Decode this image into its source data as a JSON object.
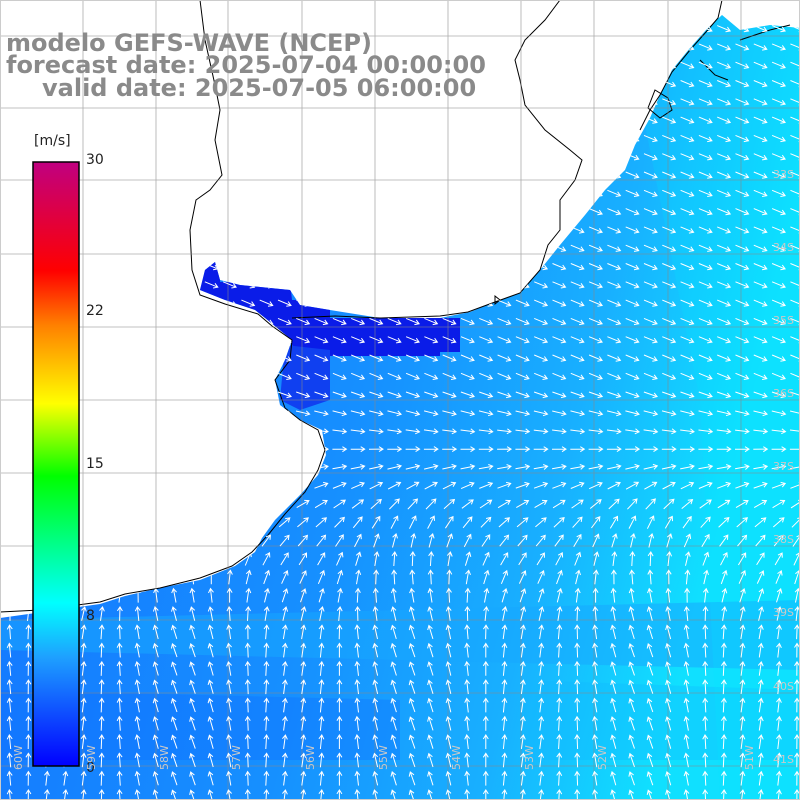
{
  "title": {
    "line1": "modelo GEFS-WAVE (NCEP)",
    "line2": "forecast date: 2025-07-04 00:00:00",
    "line3": "valid date: 2025-07-05 06:00:00"
  },
  "colorbar": {
    "units": "[m/s]",
    "ticks": [
      "30",
      "22",
      "15",
      "8",
      "0"
    ],
    "tick_values": [
      30,
      22,
      15,
      8,
      0
    ],
    "range": [
      0,
      30
    ],
    "colors": [
      "#0000ff",
      "#1ea0ff",
      "#00ffff",
      "#00ff00",
      "#ffff00",
      "#ff8000",
      "#ff0000",
      "#c00080"
    ]
  },
  "grid_labels": {
    "lat": [
      "33S",
      "34S",
      "35S",
      "36S",
      "37S",
      "38S",
      "39S",
      "40S",
      "41S"
    ],
    "lon": [
      "60W",
      "59W",
      "58W",
      "57W",
      "56W",
      "55W",
      "54W",
      "53W",
      "52W",
      "51W"
    ]
  },
  "colors": {
    "land": "#ffffff",
    "coast": "#000000",
    "grid": "#888888",
    "title": "#8a8a8a",
    "arrow": "#ffffff",
    "sea_low": "#0a14e6",
    "sea_mid": "#1478ff",
    "sea_high": "#14c8ff"
  }
}
